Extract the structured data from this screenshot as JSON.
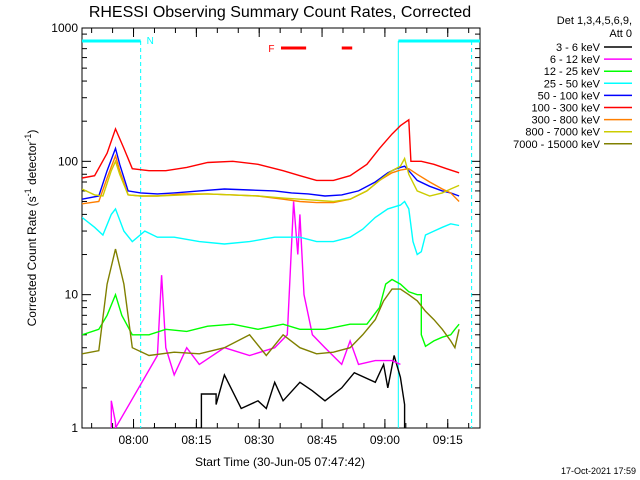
{
  "chart_data": {
    "type": "line",
    "title": "RHESSI Observing Summary Count Rates, Corrected",
    "xlabel": "Start Time (30-Jun-05 07:47:42)",
    "ylabel_main": "Corrected Count Rate (s",
    "ylabel_sup1": "-1",
    "ylabel_mid": " detector",
    "ylabel_sup2": "-1",
    "ylabel_end": ")",
    "y_scale": "log",
    "ylim": [
      1,
      1000
    ],
    "xlim_minutes": [
      0,
      95
    ],
    "x_ticks": [
      {
        "minute": 12.3,
        "label": "08:00"
      },
      {
        "minute": 27.3,
        "label": "08:15"
      },
      {
        "minute": 42.3,
        "label": "08:30"
      },
      {
        "minute": 57.3,
        "label": "08:45"
      },
      {
        "minute": 72.3,
        "label": "09:00"
      },
      {
        "minute": 87.3,
        "label": "09:15"
      }
    ],
    "y_ticks": [
      {
        "value": 1,
        "label": "1"
      },
      {
        "value": 10,
        "label": "10"
      },
      {
        "value": 100,
        "label": "100"
      },
      {
        "value": 1000,
        "label": "1000"
      }
    ],
    "legend_header": [
      "Det 1,3,4,5,6,9,",
      "Att 0"
    ],
    "legend_position": "top-right",
    "series": [
      {
        "name": "3 - 6 keV",
        "color": "#000000",
        "points": [
          [
            17,
            1
          ],
          [
            28.5,
            1
          ],
          [
            28.5,
            1.8
          ],
          [
            32,
            1.8
          ],
          [
            32,
            1.5
          ],
          [
            34,
            2.5
          ],
          [
            38,
            1.4
          ],
          [
            42,
            1.6
          ],
          [
            44,
            1.4
          ],
          [
            46,
            2.2
          ],
          [
            48,
            1.6
          ],
          [
            52,
            2.2
          ],
          [
            55,
            1.9
          ],
          [
            58,
            1.6
          ],
          [
            62,
            2
          ],
          [
            65,
            2.6
          ],
          [
            70,
            2.2
          ],
          [
            72,
            3
          ],
          [
            73,
            2
          ],
          [
            74.5,
            3.5
          ],
          [
            76,
            2.4
          ],
          [
            77,
            1.5
          ],
          [
            77,
            1
          ]
        ]
      },
      {
        "name": "6 - 12 keV",
        "color": "#ff00ff",
        "points": [
          [
            7,
            1
          ],
          [
            7,
            1.6
          ],
          [
            8,
            1.1
          ],
          [
            8,
            1
          ],
          [
            18,
            3.5
          ],
          [
            19,
            14
          ],
          [
            20,
            4
          ],
          [
            22,
            2.5
          ],
          [
            25,
            4
          ],
          [
            28,
            3
          ],
          [
            34,
            4
          ],
          [
            40,
            3.5
          ],
          [
            46,
            4
          ],
          [
            49,
            5
          ],
          [
            50.5,
            50
          ],
          [
            51.5,
            20
          ],
          [
            52,
            40
          ],
          [
            53,
            10
          ],
          [
            55,
            5
          ],
          [
            58,
            4
          ],
          [
            62,
            3
          ],
          [
            64,
            4.5
          ],
          [
            66,
            3
          ],
          [
            70,
            3.2
          ],
          [
            74,
            3.2
          ],
          [
            76,
            3
          ]
        ]
      },
      {
        "name": "12 - 25 keV",
        "color": "#00ff00",
        "points": [
          [
            0,
            5
          ],
          [
            4,
            5.5
          ],
          [
            6,
            7
          ],
          [
            8,
            10
          ],
          [
            9.5,
            7
          ],
          [
            12,
            5
          ],
          [
            16,
            5
          ],
          [
            20,
            5.5
          ],
          [
            25,
            5.3
          ],
          [
            30,
            5.8
          ],
          [
            36,
            6
          ],
          [
            42,
            5.5
          ],
          [
            48,
            6
          ],
          [
            52,
            5.5
          ],
          [
            58,
            5.5
          ],
          [
            64,
            6
          ],
          [
            68,
            6
          ],
          [
            71,
            8
          ],
          [
            72.5,
            12
          ],
          [
            74,
            13
          ],
          [
            76,
            12
          ],
          [
            78,
            10.5
          ],
          [
            80,
            10
          ],
          [
            81,
            10
          ],
          [
            81,
            5
          ],
          [
            82,
            4.1
          ],
          [
            84,
            4.5
          ],
          [
            86,
            4.8
          ],
          [
            88,
            5
          ],
          [
            89,
            5.5
          ],
          [
            90,
            6
          ]
        ]
      },
      {
        "name": "25 - 50 keV",
        "color": "#00ffff",
        "points": [
          [
            0,
            38
          ],
          [
            3,
            32
          ],
          [
            5,
            28
          ],
          [
            7,
            40
          ],
          [
            8,
            44
          ],
          [
            10,
            30
          ],
          [
            12,
            25
          ],
          [
            15,
            30
          ],
          [
            18,
            27
          ],
          [
            22,
            27
          ],
          [
            28,
            25
          ],
          [
            34,
            24
          ],
          [
            40,
            25
          ],
          [
            46,
            27
          ],
          [
            52,
            27
          ],
          [
            56,
            25
          ],
          [
            60,
            25
          ],
          [
            64,
            27
          ],
          [
            67,
            31
          ],
          [
            70,
            38
          ],
          [
            73,
            44
          ],
          [
            75,
            46
          ],
          [
            76,
            47
          ],
          [
            77,
            50
          ],
          [
            78,
            44
          ],
          [
            79,
            25
          ],
          [
            80,
            20
          ],
          [
            81,
            21
          ],
          [
            82,
            28
          ],
          [
            84,
            30
          ],
          [
            86,
            32
          ],
          [
            88,
            34
          ],
          [
            90,
            33
          ]
        ]
      },
      {
        "name": "50 - 100 keV",
        "color": "#0000ff",
        "points": [
          [
            0,
            52
          ],
          [
            4,
            55
          ],
          [
            6,
            85
          ],
          [
            8,
            125
          ],
          [
            9,
            95
          ],
          [
            11,
            60
          ],
          [
            14,
            58
          ],
          [
            18,
            57
          ],
          [
            22,
            58
          ],
          [
            28,
            60
          ],
          [
            34,
            62
          ],
          [
            40,
            61
          ],
          [
            46,
            60
          ],
          [
            50,
            58
          ],
          [
            54,
            57
          ],
          [
            58,
            55
          ],
          [
            62,
            56
          ],
          [
            66,
            60
          ],
          [
            70,
            70
          ],
          [
            73,
            82
          ],
          [
            75,
            88
          ],
          [
            77,
            92
          ],
          [
            78,
            85
          ],
          [
            80,
            72
          ],
          [
            83,
            65
          ],
          [
            86,
            60
          ],
          [
            88,
            58
          ],
          [
            90,
            55
          ]
        ]
      },
      {
        "name": "100 - 300 keV",
        "color": "#ff0000",
        "points": [
          [
            0,
            75
          ],
          [
            3,
            78
          ],
          [
            6,
            115
          ],
          [
            8,
            175
          ],
          [
            10,
            125
          ],
          [
            12,
            88
          ],
          [
            16,
            85
          ],
          [
            20,
            85
          ],
          [
            25,
            90
          ],
          [
            30,
            98
          ],
          [
            36,
            100
          ],
          [
            42,
            95
          ],
          [
            48,
            85
          ],
          [
            52,
            78
          ],
          [
            56,
            72
          ],
          [
            60,
            72
          ],
          [
            64,
            78
          ],
          [
            68,
            95
          ],
          [
            71,
            125
          ],
          [
            74,
            160
          ],
          [
            76,
            185
          ],
          [
            78,
            205
          ],
          [
            78.5,
            100
          ],
          [
            81,
            100
          ],
          [
            84,
            95
          ],
          [
            87,
            88
          ],
          [
            90,
            82
          ]
        ]
      },
      {
        "name": "300 - 800 keV",
        "color": "#ff7f00",
        "points": [
          [
            0,
            48
          ],
          [
            4,
            50
          ],
          [
            6,
            75
          ],
          [
            8,
            110
          ],
          [
            9,
            85
          ],
          [
            11,
            56
          ],
          [
            14,
            55
          ],
          [
            18,
            55
          ],
          [
            24,
            57
          ],
          [
            30,
            57
          ],
          [
            36,
            56
          ],
          [
            42,
            55
          ],
          [
            48,
            52
          ],
          [
            52,
            50
          ],
          [
            56,
            49
          ],
          [
            60,
            49
          ],
          [
            64,
            52
          ],
          [
            68,
            60
          ],
          [
            71,
            72
          ],
          [
            74,
            82
          ],
          [
            76,
            86
          ],
          [
            78,
            88
          ],
          [
            80,
            80
          ],
          [
            83,
            70
          ],
          [
            86,
            62
          ],
          [
            88,
            58
          ],
          [
            90,
            50
          ]
        ]
      },
      {
        "name": "800 - 7000 keV",
        "color": "#cccc00",
        "points": [
          [
            0,
            62
          ],
          [
            3,
            56
          ],
          [
            5,
            55
          ],
          [
            7,
            85
          ],
          [
            8,
            100
          ],
          [
            9,
            80
          ],
          [
            11,
            56
          ],
          [
            14,
            55
          ],
          [
            18,
            55
          ],
          [
            24,
            56
          ],
          [
            30,
            57
          ],
          [
            36,
            56
          ],
          [
            42,
            55
          ],
          [
            48,
            53
          ],
          [
            52,
            52
          ],
          [
            56,
            51
          ],
          [
            60,
            50
          ],
          [
            64,
            52
          ],
          [
            68,
            60
          ],
          [
            71,
            72
          ],
          [
            74,
            85
          ],
          [
            76,
            92
          ],
          [
            77,
            105
          ],
          [
            78,
            80
          ],
          [
            80,
            60
          ],
          [
            83,
            55
          ],
          [
            86,
            58
          ],
          [
            88,
            62
          ],
          [
            90,
            66
          ]
        ]
      },
      {
        "name": "7000 - 15000 keV",
        "color": "#808000",
        "points": [
          [
            0,
            3.6
          ],
          [
            4,
            3.8
          ],
          [
            6,
            12
          ],
          [
            8,
            22
          ],
          [
            10,
            12
          ],
          [
            12,
            4
          ],
          [
            16,
            3.5
          ],
          [
            22,
            3.7
          ],
          [
            28,
            3.6
          ],
          [
            34,
            4
          ],
          [
            40,
            5
          ],
          [
            44,
            3.5
          ],
          [
            48,
            5
          ],
          [
            52,
            4
          ],
          [
            56,
            3.6
          ],
          [
            60,
            3.7
          ],
          [
            64,
            4
          ],
          [
            67,
            5
          ],
          [
            70,
            6.5
          ],
          [
            72,
            9
          ],
          [
            74,
            11
          ],
          [
            76,
            11
          ],
          [
            78,
            10
          ],
          [
            80,
            9
          ],
          [
            82,
            7.5
          ],
          [
            84,
            6.5
          ],
          [
            86,
            5.5
          ],
          [
            88,
            4.5
          ],
          [
            89,
            4
          ],
          [
            90,
            5.5
          ]
        ]
      }
    ],
    "annotations": [
      {
        "label": "N",
        "color": "#00ffff"
      },
      {
        "label": "F",
        "color": "#ff0000"
      }
    ]
  },
  "timestamp": "17-Oct-2021 17:59"
}
